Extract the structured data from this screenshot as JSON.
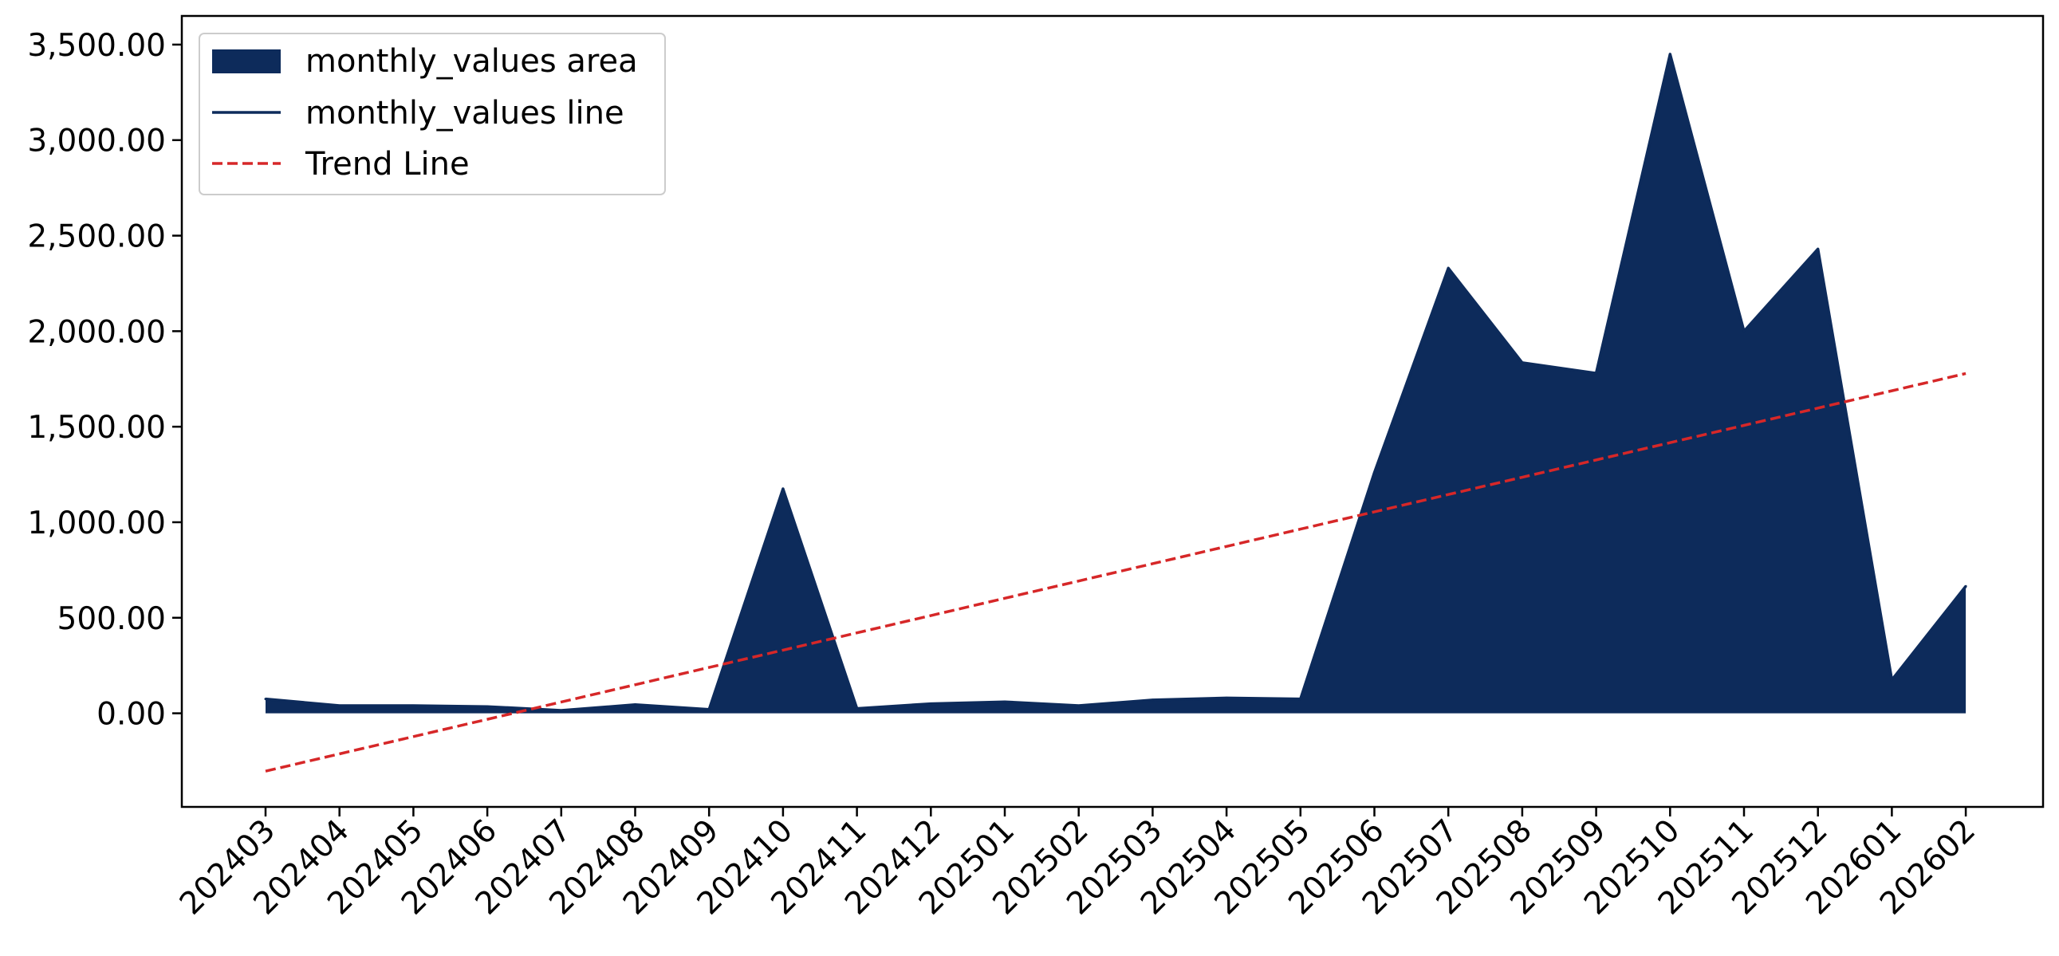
{
  "chart_data": {
    "type": "area",
    "title": "",
    "xlabel": "",
    "ylabel": "",
    "categories": [
      "202403",
      "202404",
      "202405",
      "202406",
      "202407",
      "202408",
      "202409",
      "202410",
      "202411",
      "202412",
      "202501",
      "202502",
      "202503",
      "202504",
      "202505",
      "202506",
      "202507",
      "202508",
      "202509",
      "202510",
      "202511",
      "202512",
      "202601",
      "202602"
    ],
    "series": [
      {
        "name": "monthly_values area",
        "kind": "area",
        "color": "#0d2b5b",
        "values": [
          75,
          40,
          40,
          35,
          15,
          45,
          20,
          1175,
          25,
          50,
          60,
          40,
          70,
          80,
          75,
          1260,
          2330,
          1835,
          1780,
          3450,
          2000,
          2430,
          175,
          665
        ]
      },
      {
        "name": "monthly_values line",
        "kind": "line",
        "color": "#0d2b5b",
        "values": [
          75,
          40,
          40,
          35,
          15,
          45,
          20,
          1175,
          25,
          50,
          60,
          40,
          70,
          80,
          75,
          1260,
          2330,
          1835,
          1780,
          3450,
          2000,
          2430,
          175,
          665
        ]
      },
      {
        "name": "Trend Line",
        "kind": "line",
        "style": "dashed",
        "color": "#d62728",
        "values": [
          -303,
          -212.5,
          -122,
          -31.5,
          59,
          149.5,
          240,
          330.5,
          421,
          511.5,
          602,
          692.5,
          783,
          873.5,
          964,
          1054.5,
          1145,
          1235.5,
          1326,
          1416.5,
          1507,
          1597.5,
          1688,
          1778.5
        ]
      }
    ],
    "yticks": [
      0,
      500,
      1000,
      1500,
      2000,
      2500,
      3000,
      3500
    ],
    "ytick_labels": [
      "0.00",
      "500.00",
      "1,000.00",
      "1,500.00",
      "2,000.00",
      "2,500.00",
      "3,000.00",
      "3,500.00"
    ],
    "ylim": [
      -490,
      3650
    ],
    "x_tick_rotation": 45,
    "grid": false,
    "legend": {
      "position": "top-left",
      "entries": [
        "monthly_values area",
        "monthly_values line",
        "Trend Line"
      ]
    }
  }
}
